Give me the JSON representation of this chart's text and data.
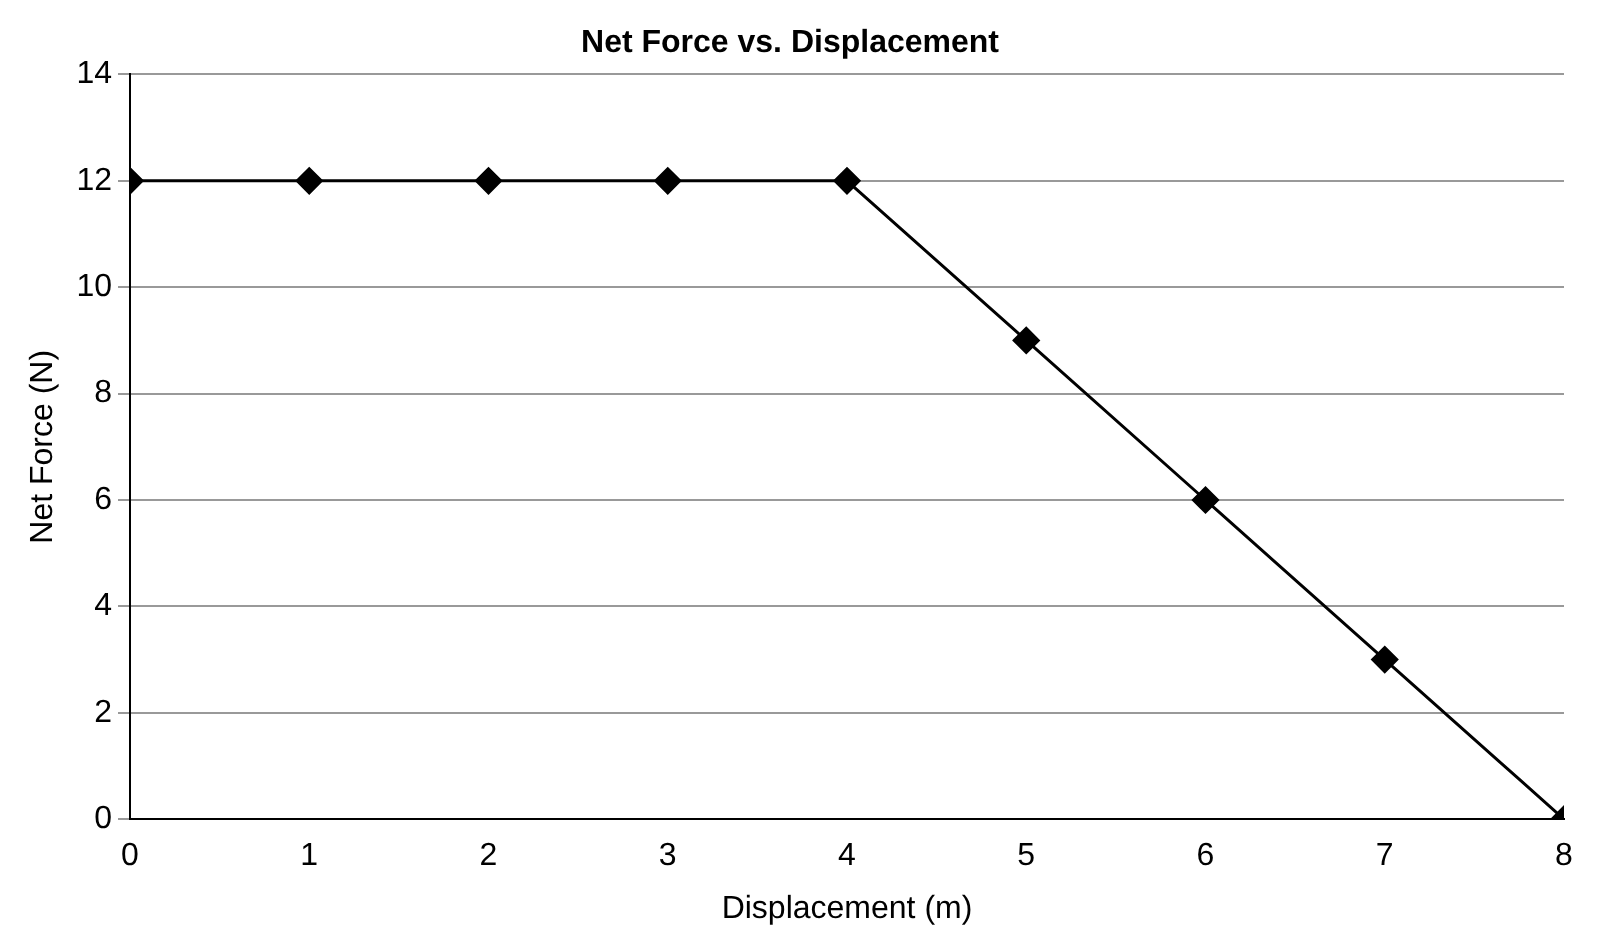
{
  "chart_data": {
    "type": "line",
    "title": "Net Force vs. Displacement",
    "xlabel": "Displacement (m)",
    "ylabel": "Net Force (N)",
    "x": [
      0,
      1,
      2,
      3,
      4,
      5,
      6,
      7,
      8
    ],
    "series": [
      {
        "color": "#000000",
        "values": [
          12,
          12,
          12,
          12,
          12,
          9,
          6,
          3,
          0
        ]
      }
    ],
    "xlim": [
      0,
      8
    ],
    "xticks": [
      0,
      1,
      2,
      3,
      4,
      5,
      6,
      7,
      8
    ],
    "ylim": [
      0,
      14
    ],
    "yticks": [
      0,
      2,
      4,
      6,
      8,
      10,
      12,
      14
    ],
    "grid": "y",
    "legend": false,
    "marker": "diamond",
    "line_style": "solid"
  }
}
